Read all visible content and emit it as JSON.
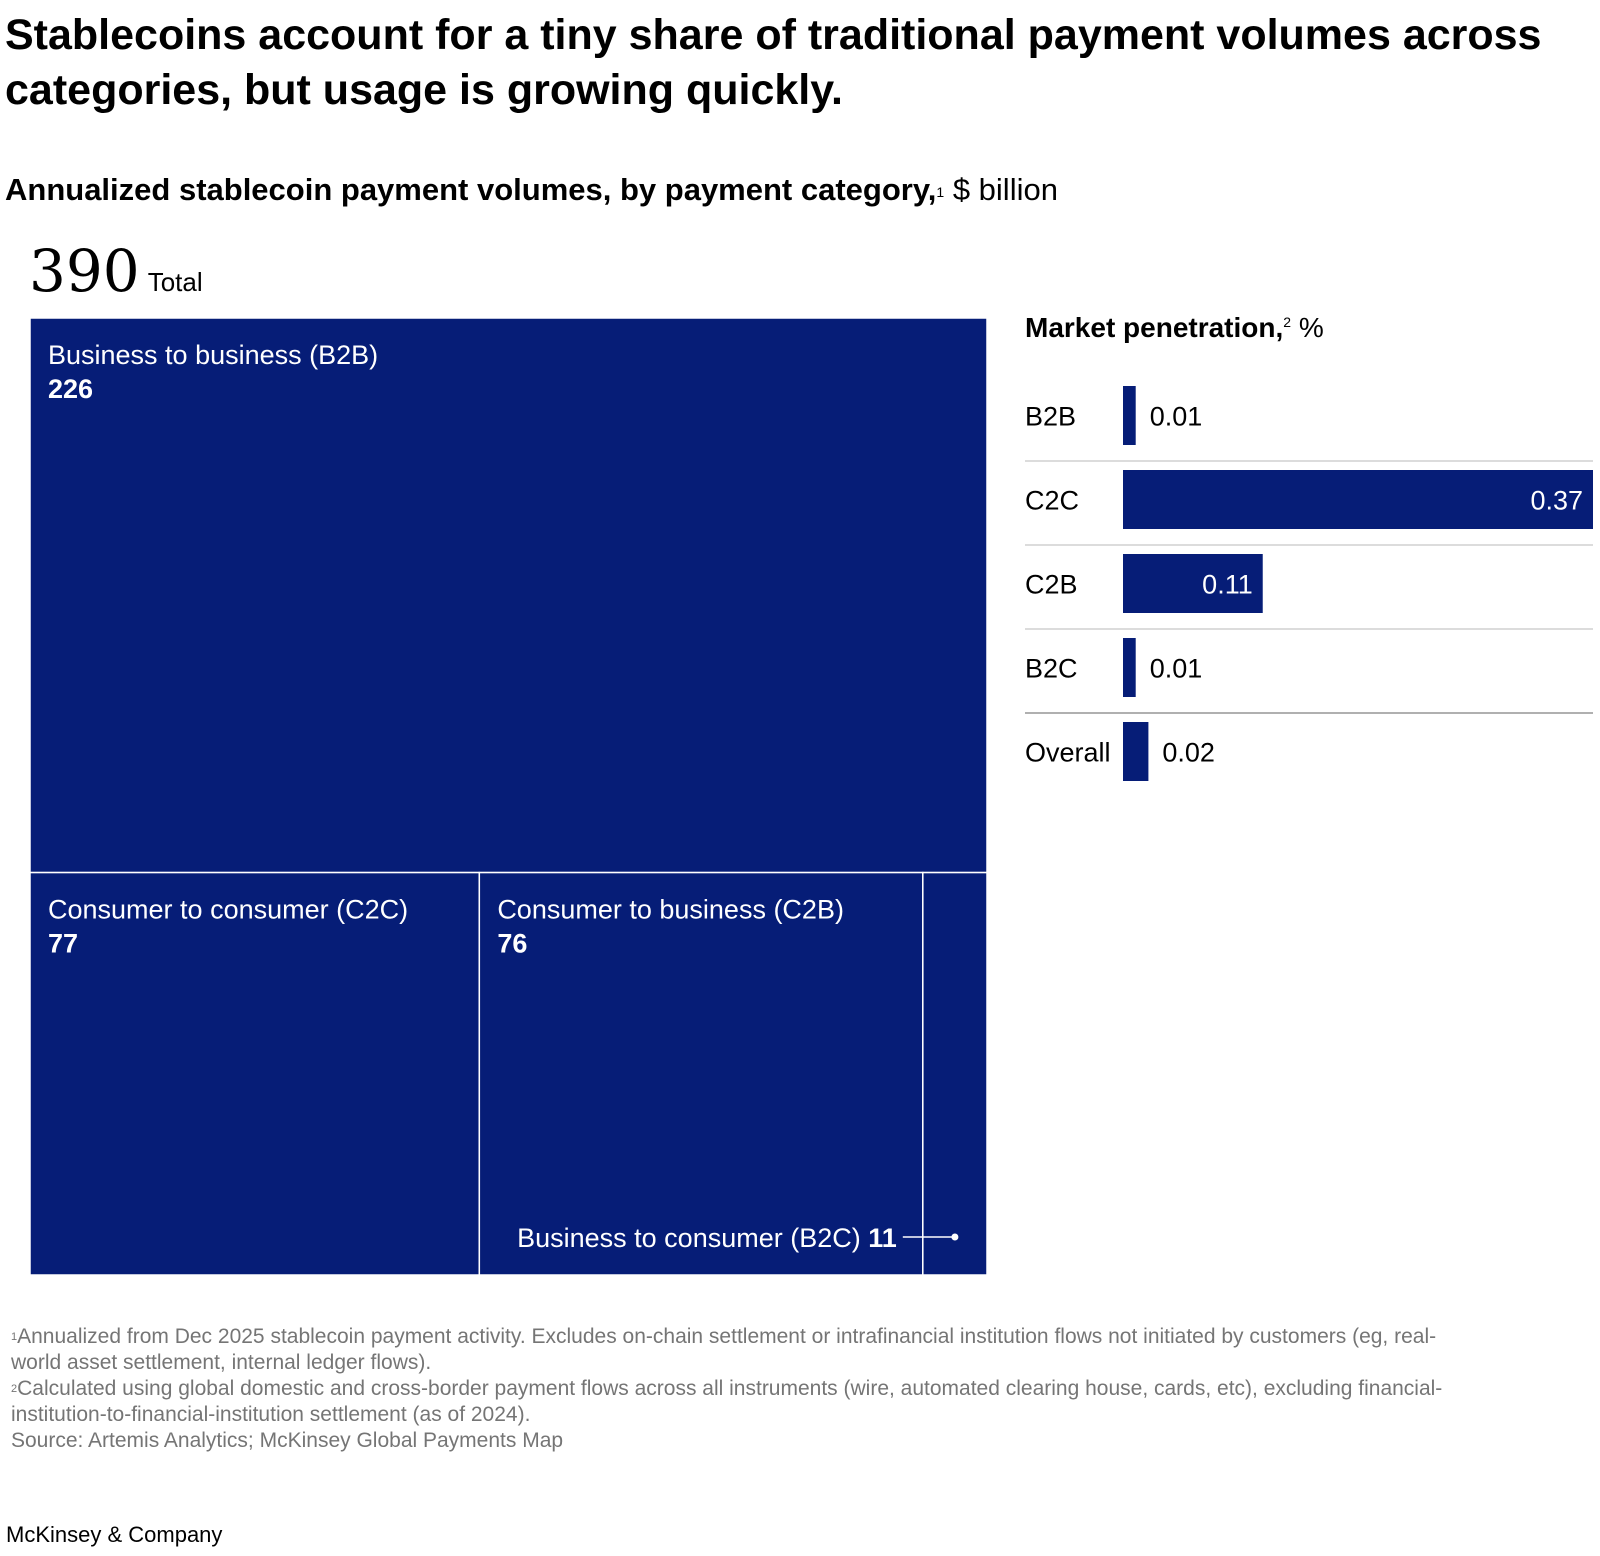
{
  "title": "Stablecoins account for a tiny share of traditional payment volumes across categories, but usage is growing quickly.",
  "subtitle": {
    "bold": "Annualized stablecoin payment volumes, by payment category,",
    "note": "1",
    "unit": "$ billion"
  },
  "total": {
    "value": "390",
    "label": "Total"
  },
  "penetration_title": {
    "bold": "Market penetration,",
    "note": "2",
    "unit": "%"
  },
  "footnotes": [
    "Annualized from Dec 2025 stablecoin payment activity. Excludes on-chain settlement or intrafinancial institution flows not initiated by customers (eg, real-world asset settlement, internal ledger flows).",
    "Calculated using global domestic and cross-border payment flows across all instruments (wire, automated clearing house, cards, etc), excluding financial-institution-to-financial-institution settlement (as of 2024)."
  ],
  "source": "Source: Artemis Analytics; McKinsey Global Payments Map",
  "brand": "McKinsey & Company",
  "colors": {
    "bar": "#061d77",
    "divider": "#d0d0d0",
    "text": "#000000",
    "muted": "#757575"
  },
  "chart_data": [
    {
      "type": "treemap",
      "title": "Annualized stablecoin payment volumes, by payment category, $ billion",
      "total": 390,
      "categories": [
        "Business to business (B2B)",
        "Consumer to consumer (C2C)",
        "Consumer to business (C2B)",
        "Business to consumer (B2C)"
      ],
      "values": [
        226,
        77,
        76,
        11
      ]
    },
    {
      "type": "bar",
      "orientation": "horizontal",
      "title": "Market penetration, %",
      "categories": [
        "B2B",
        "C2C",
        "C2B",
        "B2C",
        "Overall"
      ],
      "values": [
        0.01,
        0.37,
        0.11,
        0.01,
        0.02
      ],
      "labels": [
        "0.01",
        "0.37",
        "0.11",
        "0.01",
        "0.02"
      ]
    }
  ]
}
